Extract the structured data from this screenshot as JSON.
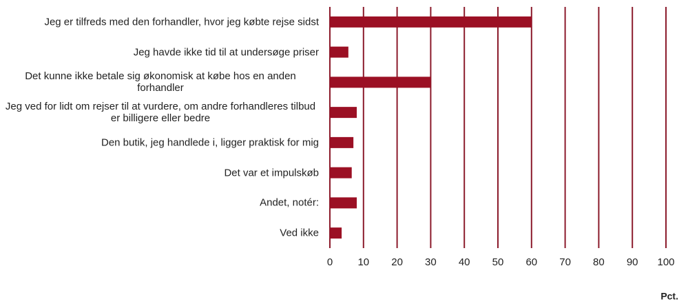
{
  "chart_data": {
    "type": "bar",
    "orientation": "horizontal",
    "categories": [
      "Jeg er tilfreds med den forhandler, hvor jeg købte rejse sidst",
      "Jeg havde ikke tid til at undersøge priser",
      "Det kunne ikke betale sig økonomisk at købe hos en anden forhandler",
      "Jeg ved for lidt om rejser til at vurdere, om andre forhandleres tilbud er billigere eller bedre",
      "Den butik, jeg handlede i, ligger praktisk for mig",
      "Det var et impulskøb",
      "Andet, notér:",
      "Ved ikke"
    ],
    "values": [
      60,
      5.5,
      30,
      8,
      7,
      6.5,
      8,
      3.5
    ],
    "color": "#9b1024",
    "grid_color": "#8b1a2b",
    "xlim": [
      0,
      100
    ],
    "xticks": [
      0,
      10,
      20,
      30,
      40,
      50,
      60,
      70,
      80,
      90,
      100
    ],
    "x_label": "Pct.",
    "grid": true
  }
}
